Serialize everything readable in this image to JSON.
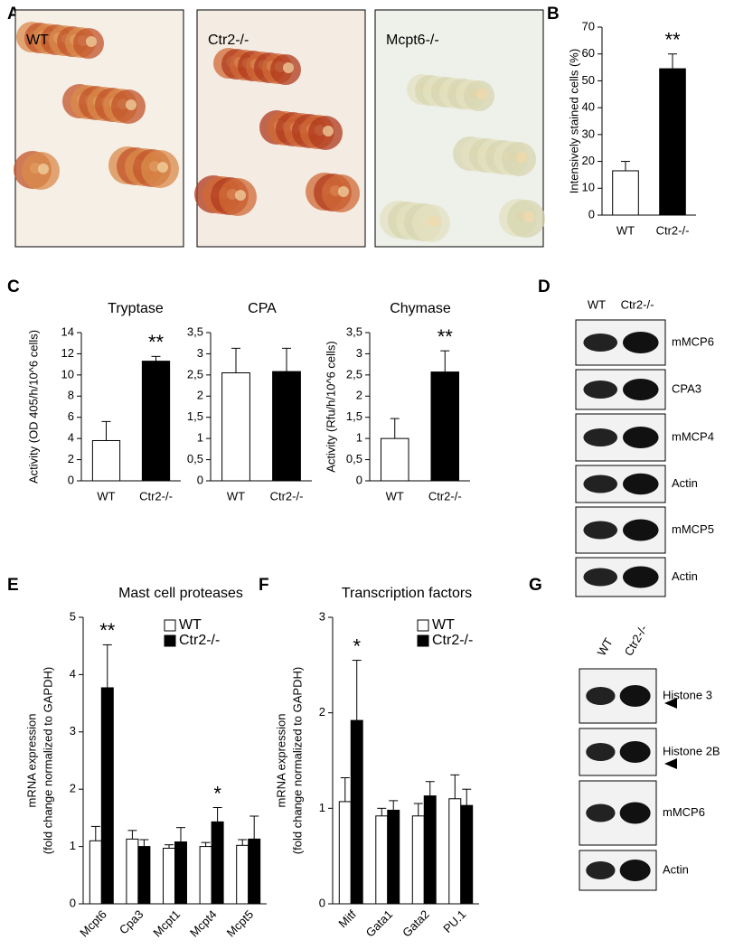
{
  "chart_data": [
    {
      "type": "bar",
      "categories": [
        "WT",
        "Ctr2-/-"
      ],
      "values": [
        16.5,
        54.5
      ],
      "errors": [
        3.5,
        5.5
      ],
      "colors": [
        "#ffffff",
        "#000000"
      ],
      "ylabel": "Intensively stained cells (%)",
      "ylim": [
        0,
        70
      ],
      "yticks": [
        0,
        10,
        20,
        30,
        40,
        50,
        60,
        70
      ],
      "annotations": [
        null,
        "**"
      ]
    },
    {
      "type": "bar",
      "title": "Tryptase",
      "categories": [
        "WT",
        "Ctr2-/-"
      ],
      "values": [
        3.8,
        11.3
      ],
      "errors": [
        1.8,
        0.45
      ],
      "colors": [
        "#ffffff",
        "#000000"
      ],
      "ylabel": "Activity (OD 405/h/10^6 cells)",
      "ylim": [
        0,
        14
      ],
      "yticks": [
        0,
        2,
        4,
        6,
        8,
        10,
        12,
        14
      ],
      "annotations": [
        null,
        "**"
      ]
    },
    {
      "type": "bar",
      "title": "CPA",
      "categories": [
        "WT",
        "Ctr2-/-"
      ],
      "values": [
        2.55,
        2.58
      ],
      "errors": [
        0.58,
        0.55
      ],
      "colors": [
        "#ffffff",
        "#000000"
      ],
      "ylim": [
        0,
        3.5
      ],
      "yticks": [
        0,
        {
          "value": 0.5,
          "label": "0,5"
        },
        1,
        {
          "value": 1.5,
          "label": "1,5"
        },
        2,
        {
          "value": 2.5,
          "label": "2,5"
        },
        3,
        {
          "value": 3.5,
          "label": "3,5"
        }
      ]
    },
    {
      "type": "bar",
      "title": "Chymase",
      "categories": [
        "WT",
        "Ctr2-/-"
      ],
      "values": [
        1.0,
        2.57
      ],
      "errors": [
        0.47,
        0.5
      ],
      "colors": [
        "#ffffff",
        "#000000"
      ],
      "ylabel": "Activity (Rfu/h/10^6 cells)",
      "ylim": [
        0,
        3.5
      ],
      "yticks": [
        0,
        {
          "value": 0.5,
          "label": "0,5"
        },
        1,
        {
          "value": 1.5,
          "label": "1,5"
        },
        2,
        {
          "value": 2.5,
          "label": "2,5"
        },
        3,
        {
          "value": 3.5,
          "label": "3,5"
        }
      ],
      "annotations": [
        null,
        "**"
      ]
    },
    {
      "type": "grouped_bar",
      "title": "Mast cell proteases",
      "categories": [
        "Mcpt6",
        "Cpa3",
        "Mcpt1",
        "Mcpt4",
        "Mcpt5"
      ],
      "series": [
        {
          "name": "WT",
          "color": "#ffffff",
          "values": [
            1.1,
            1.13,
            0.97,
            1.0,
            1.02
          ],
          "errors": [
            0.25,
            0.15,
            0.06,
            0.07,
            0.1
          ]
        },
        {
          "name": "Ctr2-/-",
          "color": "#000000",
          "values": [
            3.77,
            1.0,
            1.08,
            1.43,
            1.13
          ],
          "errors": [
            0.75,
            0.12,
            0.25,
            0.25,
            0.4
          ]
        }
      ],
      "ylabel": [
        "mRNA expression",
        "(fold change normalized to GAPDH)"
      ],
      "ylim": [
        0,
        5
      ],
      "yticks": [
        0,
        1,
        2,
        3,
        4,
        5
      ],
      "annotations": [
        "**",
        null,
        null,
        "*",
        null
      ]
    },
    {
      "type": "grouped_bar",
      "title": "Transcription factors",
      "categories": [
        "Mitf",
        "Gata1",
        "Gata2",
        "PU.1"
      ],
      "series": [
        {
          "name": "WT",
          "color": "#ffffff",
          "values": [
            1.07,
            0.92,
            0.92,
            1.1
          ],
          "errors": [
            0.25,
            0.08,
            0.13,
            0.25
          ]
        },
        {
          "name": "Ctr2-/-",
          "color": "#000000",
          "values": [
            1.92,
            0.98,
            1.13,
            1.03
          ],
          "errors": [
            0.63,
            0.1,
            0.15,
            0.17
          ]
        }
      ],
      "ylabel": [
        "mRNA expression",
        "(fold change normalized to GAPDH)"
      ],
      "ylim": [
        0,
        3
      ],
      "yticks": [
        0,
        1,
        2,
        3
      ],
      "annotations": [
        "*",
        null,
        null,
        null
      ]
    }
  ],
  "panel_labels": [
    "A",
    "B",
    "C",
    "D",
    "E",
    "F",
    "G"
  ],
  "micrographs": [
    "WT",
    "Ctr2-/-",
    "Mcpt6-/-"
  ],
  "blot_d": {
    "lanes": [
      "WT",
      "Ctr2-/-"
    ],
    "bands": [
      "mMCP6",
      "CPA3",
      "mMCP4",
      "Actin",
      "mMCP5",
      "Actin"
    ]
  },
  "blot_g": {
    "lanes": [
      "WT",
      "Ctr2-/-"
    ],
    "bands": [
      "Histone 3",
      "Histone 2B",
      "mMCP6",
      "Actin"
    ]
  }
}
